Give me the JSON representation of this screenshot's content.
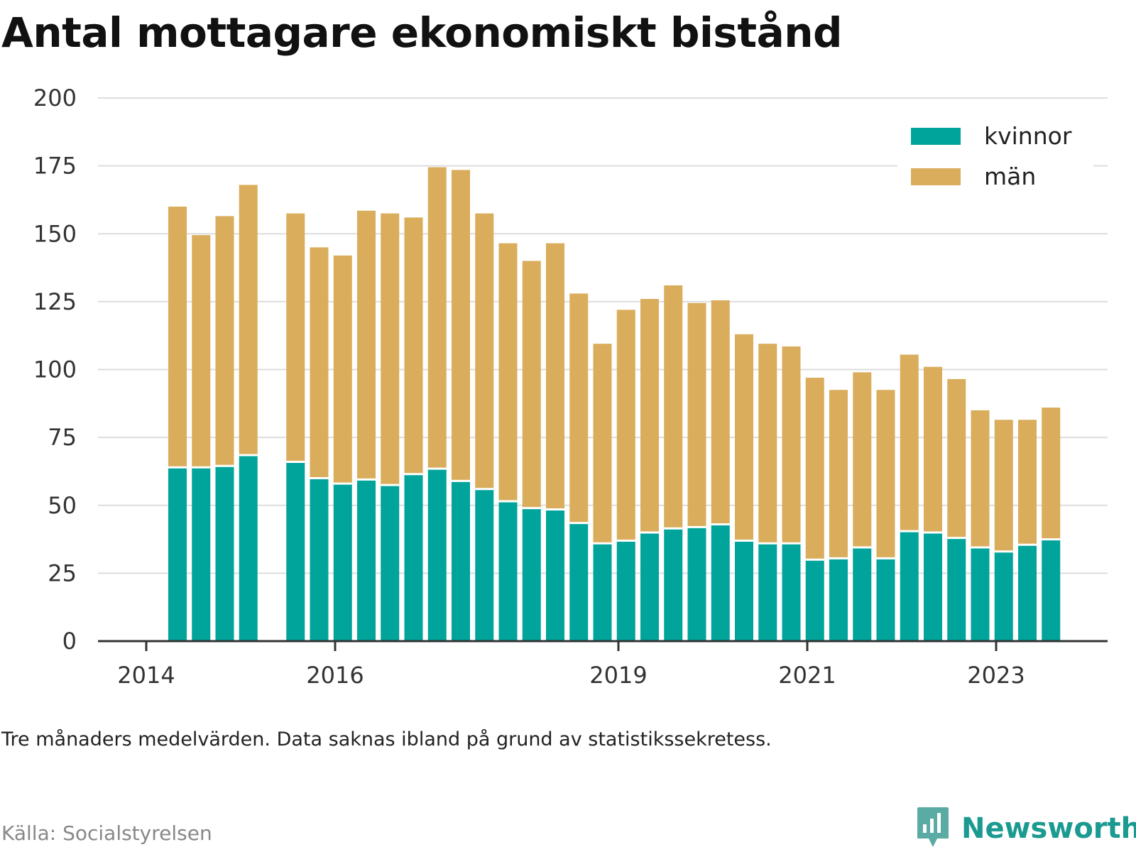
{
  "title": "Antal mottagare ekonomiskt bistånd",
  "note": "Tre månaders medelvärden. Data saknas ibland på grund av statistikssekretess.",
  "source": "Källa: Socialstyrelsen",
  "brand": {
    "name": "Newsworthy",
    "icon": "newsworthy-logo-icon"
  },
  "colors": {
    "kvinnor": "#00a49a",
    "man": "#d9ad5b",
    "grid": "#dddddd",
    "axis": "#333333"
  },
  "chart_data": {
    "type": "bar",
    "stacked": true,
    "ylim": [
      0,
      200
    ],
    "yticks": [
      0,
      25,
      50,
      75,
      100,
      125,
      150,
      175,
      200
    ],
    "x_axis_labels": [
      "2014",
      "2016",
      "2019",
      "2021",
      "2023"
    ],
    "grid": true,
    "legend_position": "top-right",
    "series": [
      {
        "name": "kvinnor",
        "color": "#00a49a",
        "values": [
          64,
          64,
          64.5,
          68.5,
          66,
          60,
          58,
          59.5,
          57.5,
          61.5,
          63.5,
          59,
          56,
          51.5,
          49,
          48.5,
          43.5,
          36,
          37,
          40,
          41.5,
          42,
          43,
          37,
          36,
          36,
          30,
          30.5,
          34.5,
          30.5,
          40.5,
          40,
          38,
          34.5,
          33,
          35.5,
          37.5
        ]
      },
      {
        "name": "män",
        "color": "#d9ad5b",
        "values": [
          96,
          85.5,
          92,
          99.5,
          91.5,
          85,
          84,
          99,
          100,
          94.5,
          111,
          114.5,
          101.5,
          95,
          91,
          98,
          84.5,
          73.5,
          85,
          86,
          89.5,
          82.5,
          82.5,
          76,
          73.5,
          72.5,
          67,
          62,
          64.5,
          62,
          65,
          61,
          58.5,
          50.5,
          48.5,
          46,
          48.5
        ]
      }
    ]
  }
}
